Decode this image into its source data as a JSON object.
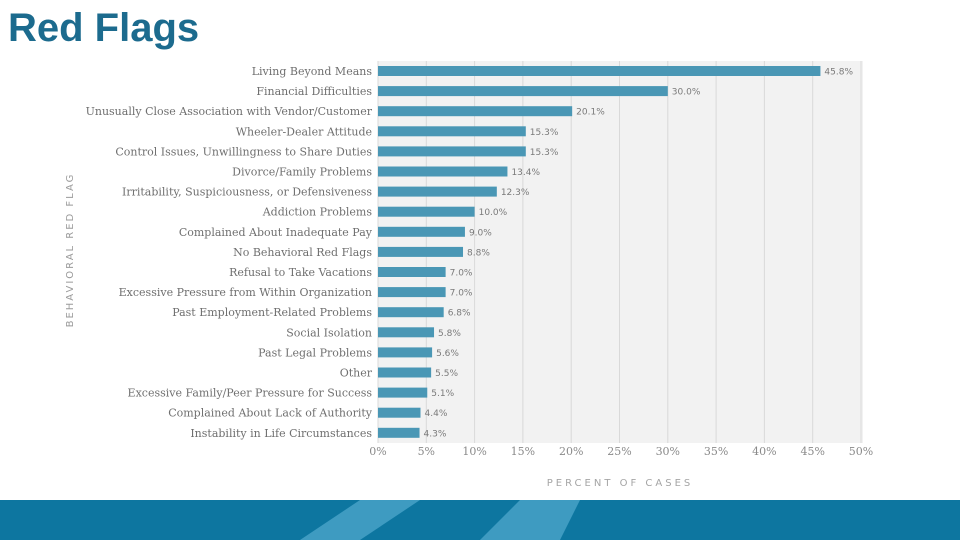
{
  "slide": {
    "title": "Red Flags"
  },
  "colors": {
    "bar": "#4a97b5",
    "title": "#1c6b8e",
    "plot_bg": "#f2f2f2",
    "footer_dark": "#0d76a0",
    "footer_light": "#3e9bc1"
  },
  "chart_data": {
    "type": "bar",
    "orientation": "horizontal",
    "ylabel": "BEHAVIORAL RED FLAG",
    "xlabel": "PERCENT OF CASES",
    "xlim": [
      0,
      50
    ],
    "xticks": [
      "0%",
      "5%",
      "10%",
      "15%",
      "20%",
      "25%",
      "30%",
      "35%",
      "40%",
      "45%",
      "50%"
    ],
    "grid": true,
    "categories": [
      "Living Beyond Means",
      "Financial Difficulties",
      "Unusually Close Association with Vendor/Customer",
      "Wheeler-Dealer Attitude",
      "Control Issues, Unwillingness to Share Duties",
      "Divorce/Family Problems",
      "Irritability, Suspiciousness, or Defensiveness",
      "Addiction Problems",
      "Complained About Inadequate Pay",
      "No Behavioral Red Flags",
      "Refusal to Take Vacations",
      "Excessive Pressure from Within Organization",
      "Past Employment-Related Problems",
      "Social Isolation",
      "Past Legal Problems",
      "Other",
      "Excessive Family/Peer Pressure for Success",
      "Complained About Lack of Authority",
      "Instability in Life Circumstances"
    ],
    "values": [
      45.8,
      30.0,
      20.1,
      15.3,
      15.3,
      13.4,
      12.3,
      10.0,
      9.0,
      8.8,
      7.0,
      7.0,
      6.8,
      5.8,
      5.6,
      5.5,
      5.1,
      4.4,
      4.3
    ],
    "data_labels": [
      "45.8%",
      "30.0%",
      "20.1%",
      "15.3%",
      "15.3%",
      "13.4%",
      "12.3%",
      "10.0%",
      "9.0%",
      "8.8%",
      "7.0%",
      "7.0%",
      "6.8%",
      "5.8%",
      "5.6%",
      "5.5%",
      "5.1%",
      "4.4%",
      "4.3%"
    ]
  }
}
